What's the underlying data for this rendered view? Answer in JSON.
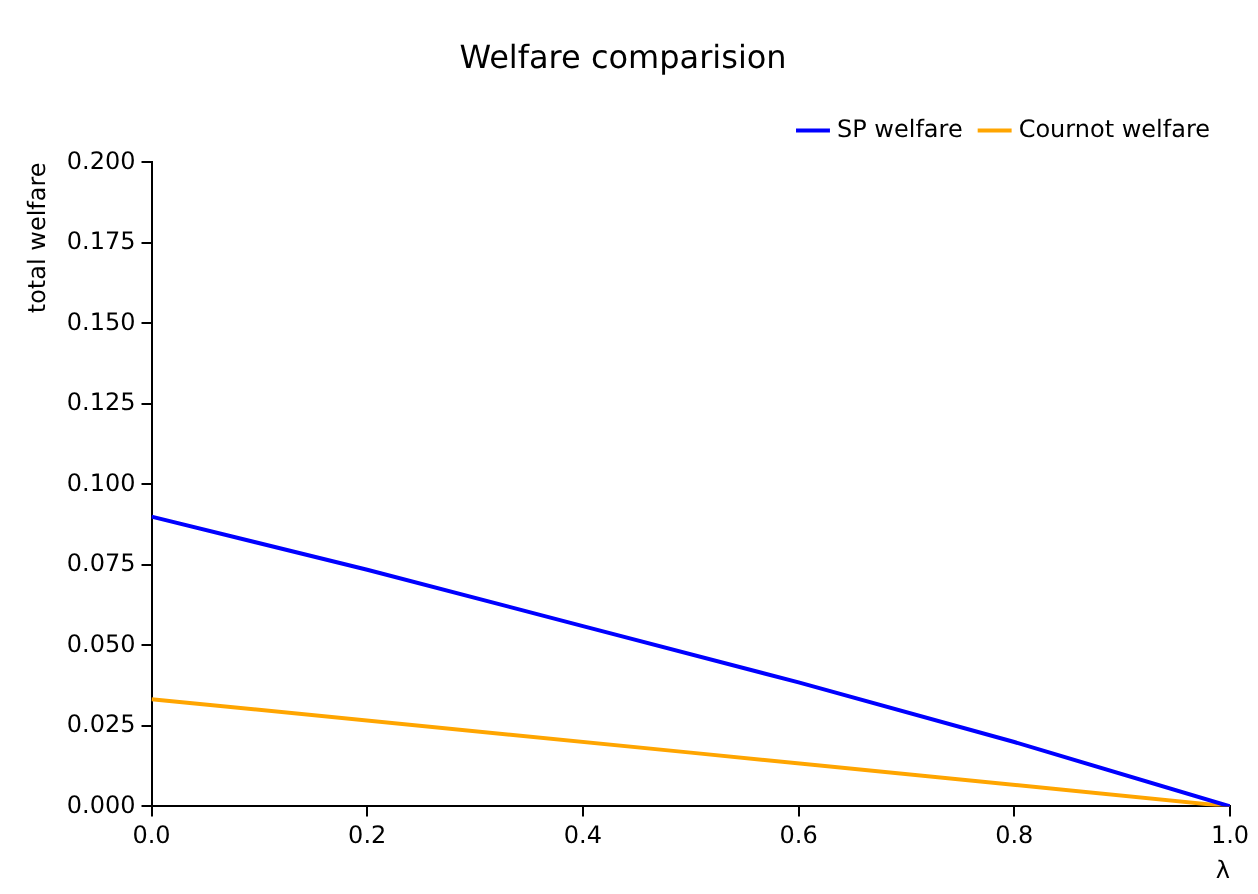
{
  "chart_data": {
    "type": "line",
    "title": "Welfare comparision",
    "xlabel": "λ",
    "ylabel": "total welfare",
    "x": [
      0,
      0.2,
      0.4,
      0.6,
      0.8,
      1.0
    ],
    "series": [
      {
        "name": "SP welfare",
        "color": "#0000ff",
        "values": [
          0.09,
          0.0735,
          0.056,
          0.0385,
          0.02,
          0
        ]
      },
      {
        "name": "Cournot welfare",
        "color": "#ffa500",
        "x": [
          0,
          0.5,
          1.0
        ],
        "values": [
          0.0333,
          0.0167,
          0
        ]
      }
    ],
    "xlim": [
      0,
      1.0
    ],
    "xticks": [
      {
        "value": 0,
        "label": "0.0"
      },
      {
        "value": 0.2,
        "label": "0.2"
      },
      {
        "value": 0.4,
        "label": "0.4"
      },
      {
        "value": 0.6,
        "label": "0.6"
      },
      {
        "value": 0.8,
        "label": "0.8"
      },
      {
        "value": 1.0,
        "label": "1.0"
      }
    ],
    "ylim": [
      0,
      0.2
    ],
    "yticks": [
      {
        "value": 0,
        "label": "0.000"
      },
      {
        "value": 0.025,
        "label": "0.025"
      },
      {
        "value": 0.05,
        "label": "0.050"
      },
      {
        "value": 0.075,
        "label": "0.075"
      },
      {
        "value": 0.1,
        "label": "0.100"
      },
      {
        "value": 0.125,
        "label": "0.125"
      },
      {
        "value": 0.15,
        "label": "0.150"
      },
      {
        "value": 0.175,
        "label": "0.175"
      },
      {
        "value": 0.2,
        "label": "0.200"
      }
    ],
    "grid": false,
    "legend": "top right",
    "marker": "none",
    "line_style": "solid"
  }
}
